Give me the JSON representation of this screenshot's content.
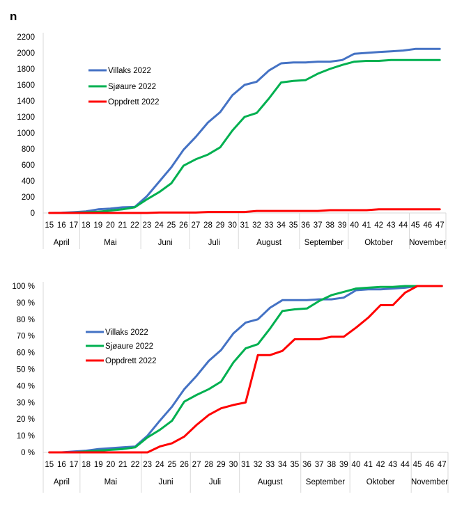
{
  "page": {
    "unit_label": "n"
  },
  "colors": {
    "villaks": "#4472C4",
    "sjoaure": "#00B050",
    "oppdrett": "#FF0000",
    "grid": "#D9D9D9"
  },
  "chart_data": [
    {
      "type": "line",
      "title": "",
      "ylabel": "n",
      "ylim": [
        0,
        2200
      ],
      "yticks": [
        0,
        200,
        400,
        600,
        800,
        1000,
        1200,
        1400,
        1600,
        1800,
        2000,
        2200
      ],
      "ytick_labels": [
        "0",
        "200",
        "400",
        "600",
        "800",
        "1000",
        "1200",
        "1400",
        "1600",
        "1800",
        "2000",
        "2200"
      ],
      "grid": false,
      "legend": "top-left",
      "categories": [
        "15",
        "16",
        "17",
        "18",
        "19",
        "20",
        "21",
        "22",
        "23",
        "24",
        "25",
        "26",
        "27",
        "28",
        "29",
        "30",
        "31",
        "32",
        "33",
        "34",
        "35",
        "36",
        "37",
        "38",
        "39",
        "40",
        "41",
        "42",
        "43",
        "44",
        "45",
        "46",
        "47"
      ],
      "month_groups": [
        {
          "label": "April",
          "weeks": 3
        },
        {
          "label": "Mai",
          "weeks": 5
        },
        {
          "label": "Juni",
          "weeks": 4
        },
        {
          "label": "Juli",
          "weeks": 4
        },
        {
          "label": "August",
          "weeks": 5
        },
        {
          "label": "September",
          "weeks": 4
        },
        {
          "label": "Oktober",
          "weeks": 5
        },
        {
          "label": "November",
          "weeks": 3
        }
      ],
      "series": [
        {
          "name": "Villaks 2022",
          "color": "#4472C4",
          "values": [
            0,
            2,
            10,
            20,
            45,
            55,
            70,
            75,
            210,
            390,
            570,
            790,
            950,
            1130,
            1260,
            1470,
            1600,
            1640,
            1780,
            1870,
            1880,
            1880,
            1890,
            1890,
            1910,
            1990,
            2000,
            2010,
            2020,
            2030,
            2050,
            2050,
            2050
          ]
        },
        {
          "name": "Sjøaure 2022",
          "color": "#00B050",
          "values": [
            0,
            0,
            3,
            8,
            15,
            30,
            45,
            70,
            170,
            260,
            370,
            590,
            670,
            730,
            820,
            1030,
            1200,
            1250,
            1430,
            1630,
            1650,
            1660,
            1740,
            1800,
            1850,
            1890,
            1900,
            1900,
            1910,
            1910,
            1910,
            1910,
            1910
          ]
        },
        {
          "name": "Oppdrett 2022",
          "color": "#FF0000",
          "values": [
            0,
            0,
            0,
            0,
            0,
            0,
            0,
            0,
            0,
            5,
            5,
            5,
            5,
            12,
            12,
            12,
            12,
            25,
            25,
            25,
            25,
            25,
            25,
            35,
            35,
            35,
            35,
            45,
            45,
            45,
            45,
            45,
            45
          ]
        }
      ]
    },
    {
      "type": "line",
      "title": "",
      "ylim": [
        0,
        100
      ],
      "yticks": [
        0,
        10,
        20,
        30,
        40,
        50,
        60,
        70,
        80,
        90,
        100
      ],
      "ytick_labels": [
        "0 %",
        "10 %",
        "20 %",
        "30 %",
        "40 %",
        "50 %",
        "60 %",
        "70 %",
        "80 %",
        "90 %",
        "100 %"
      ],
      "grid": false,
      "legend": "left",
      "categories": [
        "15",
        "16",
        "17",
        "18",
        "19",
        "20",
        "21",
        "22",
        "23",
        "24",
        "25",
        "26",
        "27",
        "28",
        "29",
        "30",
        "31",
        "32",
        "33",
        "34",
        "35",
        "36",
        "37",
        "38",
        "39",
        "40",
        "41",
        "42",
        "43",
        "44",
        "45",
        "46",
        "47"
      ],
      "month_groups": [
        {
          "label": "April",
          "weeks": 3
        },
        {
          "label": "Mai",
          "weeks": 5
        },
        {
          "label": "Juni",
          "weeks": 4
        },
        {
          "label": "Juli",
          "weeks": 4
        },
        {
          "label": "August",
          "weeks": 5
        },
        {
          "label": "September",
          "weeks": 4
        },
        {
          "label": "Oktober",
          "weeks": 5
        },
        {
          "label": "November",
          "weeks": 3
        }
      ],
      "series": [
        {
          "name": "Villaks 2022",
          "color": "#4472C4",
          "values": [
            0,
            0,
            0.5,
            1,
            2,
            2.5,
            3,
            3.5,
            10,
            19,
            27.5,
            38,
            46,
            55,
            61.5,
            71.5,
            78,
            80,
            87,
            91.5,
            91.5,
            91.5,
            92,
            92,
            93,
            97.5,
            98,
            98,
            98.5,
            99,
            100,
            100,
            100
          ]
        },
        {
          "name": "Sjøaure 2022",
          "color": "#00B050",
          "values": [
            0,
            0,
            0,
            0.5,
            1,
            1.5,
            2,
            3,
            9,
            13.5,
            19,
            30.5,
            34.5,
            38,
            42.5,
            54,
            62.5,
            65,
            74.5,
            85,
            86,
            86.5,
            91,
            94.5,
            96.5,
            98.5,
            99,
            99.5,
            99.5,
            100,
            100,
            100,
            100
          ]
        },
        {
          "name": "Oppdrett 2022",
          "color": "#FF0000",
          "values": [
            0,
            0,
            0,
            0,
            0,
            0,
            0,
            0,
            0,
            3.5,
            5.5,
            9.5,
            16.5,
            22.5,
            26.5,
            28.5,
            30,
            58.5,
            58.5,
            61,
            68,
            68,
            68,
            69.5,
            69.5,
            75,
            81,
            88.5,
            88.5,
            96,
            100,
            100,
            100
          ]
        }
      ]
    }
  ]
}
